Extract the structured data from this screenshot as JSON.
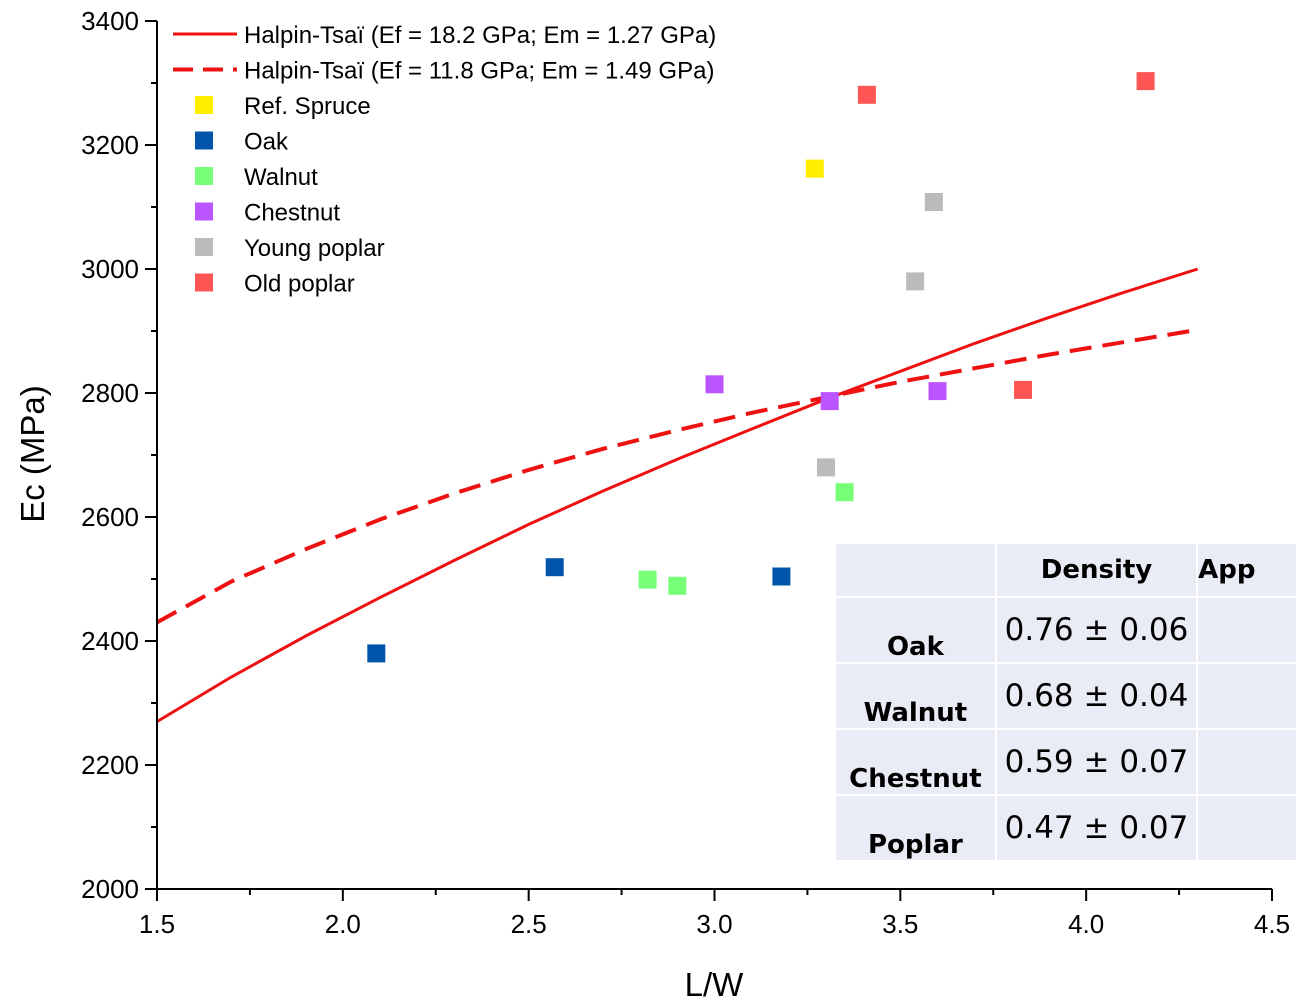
{
  "chart_data": {
    "type": "scatter",
    "xlabel": "L/W",
    "ylabel": "Ec (MPa)",
    "xlim": [
      1.5,
      4.5
    ],
    "ylim": [
      2000,
      3400
    ],
    "x_ticks": [
      "1.5",
      "2.0",
      "2.5",
      "3.0",
      "3.5",
      "4.0",
      "4.5"
    ],
    "y_ticks": [
      "2000",
      "2200",
      "2400",
      "2600",
      "2800",
      "3000",
      "3200",
      "3400"
    ],
    "grid": false,
    "legend_position": "top-left",
    "series": [
      {
        "name": "Halpin-Tsaï (Ef = 18.2 GPa; Em = 1.27 GPa)",
        "kind": "line",
        "style": "solid",
        "color": "#ee1111",
        "x": [
          1.5,
          1.7,
          1.9,
          2.1,
          2.3,
          2.5,
          2.7,
          2.9,
          3.1,
          3.3,
          3.5,
          3.7,
          3.9,
          4.1,
          4.3
        ],
        "y": [
          2270,
          2342,
          2408,
          2470,
          2530,
          2588,
          2642,
          2693,
          2742,
          2790,
          2835,
          2880,
          2922,
          2962,
          3000
        ]
      },
      {
        "name": "Halpin-Tsaï (Ef = 11.8 GPa; Em = 1.49 GPa)",
        "kind": "line",
        "style": "dashed",
        "color": "#ee1111",
        "x": [
          1.5,
          1.7,
          1.9,
          2.1,
          2.3,
          2.5,
          2.7,
          2.9,
          3.1,
          3.3,
          3.5,
          3.7,
          3.9,
          4.1,
          4.3
        ],
        "y": [
          2430,
          2496,
          2548,
          2596,
          2638,
          2676,
          2710,
          2740,
          2768,
          2793,
          2818,
          2840,
          2862,
          2882,
          2902
        ]
      },
      {
        "name": "Ref. Spruce",
        "kind": "marker",
        "color": "#ffee00",
        "x": [
          3.27
        ],
        "y": [
          3162
        ]
      },
      {
        "name": "Oak",
        "kind": "marker",
        "color": "#0055aa",
        "x": [
          2.09,
          2.57,
          3.18
        ],
        "y": [
          2380,
          2519,
          2504
        ]
      },
      {
        "name": "Walnut",
        "kind": "marker",
        "color": "#77ff77",
        "x": [
          2.82,
          2.9,
          3.35
        ],
        "y": [
          2499,
          2489,
          2640
        ]
      },
      {
        "name": "Chestnut",
        "kind": "marker",
        "color": "#bb55ff",
        "x": [
          3.0,
          3.31,
          3.6
        ],
        "y": [
          2814,
          2787,
          2803
        ]
      },
      {
        "name": "Young poplar",
        "kind": "marker",
        "color": "#bbbbbb",
        "x": [
          3.3,
          3.54,
          3.59
        ],
        "y": [
          2680,
          2980,
          3108
        ]
      },
      {
        "name": "Old poplar",
        "kind": "marker",
        "color": "#ff5555",
        "x": [
          3.41,
          3.83,
          4.16
        ],
        "y": [
          3281,
          2805,
          3303
        ]
      }
    ],
    "inset_table": {
      "header": [
        "",
        "Density",
        "App"
      ],
      "rows": [
        {
          "name": "Oak",
          "density": "0.76 ± 0.06"
        },
        {
          "name": "Walnut",
          "density": "0.68 ± 0.04"
        },
        {
          "name": "Chestnut",
          "density": "0.59 ± 0.07"
        },
        {
          "name": "Poplar",
          "density": "0.47 ± 0.07"
        }
      ]
    }
  }
}
